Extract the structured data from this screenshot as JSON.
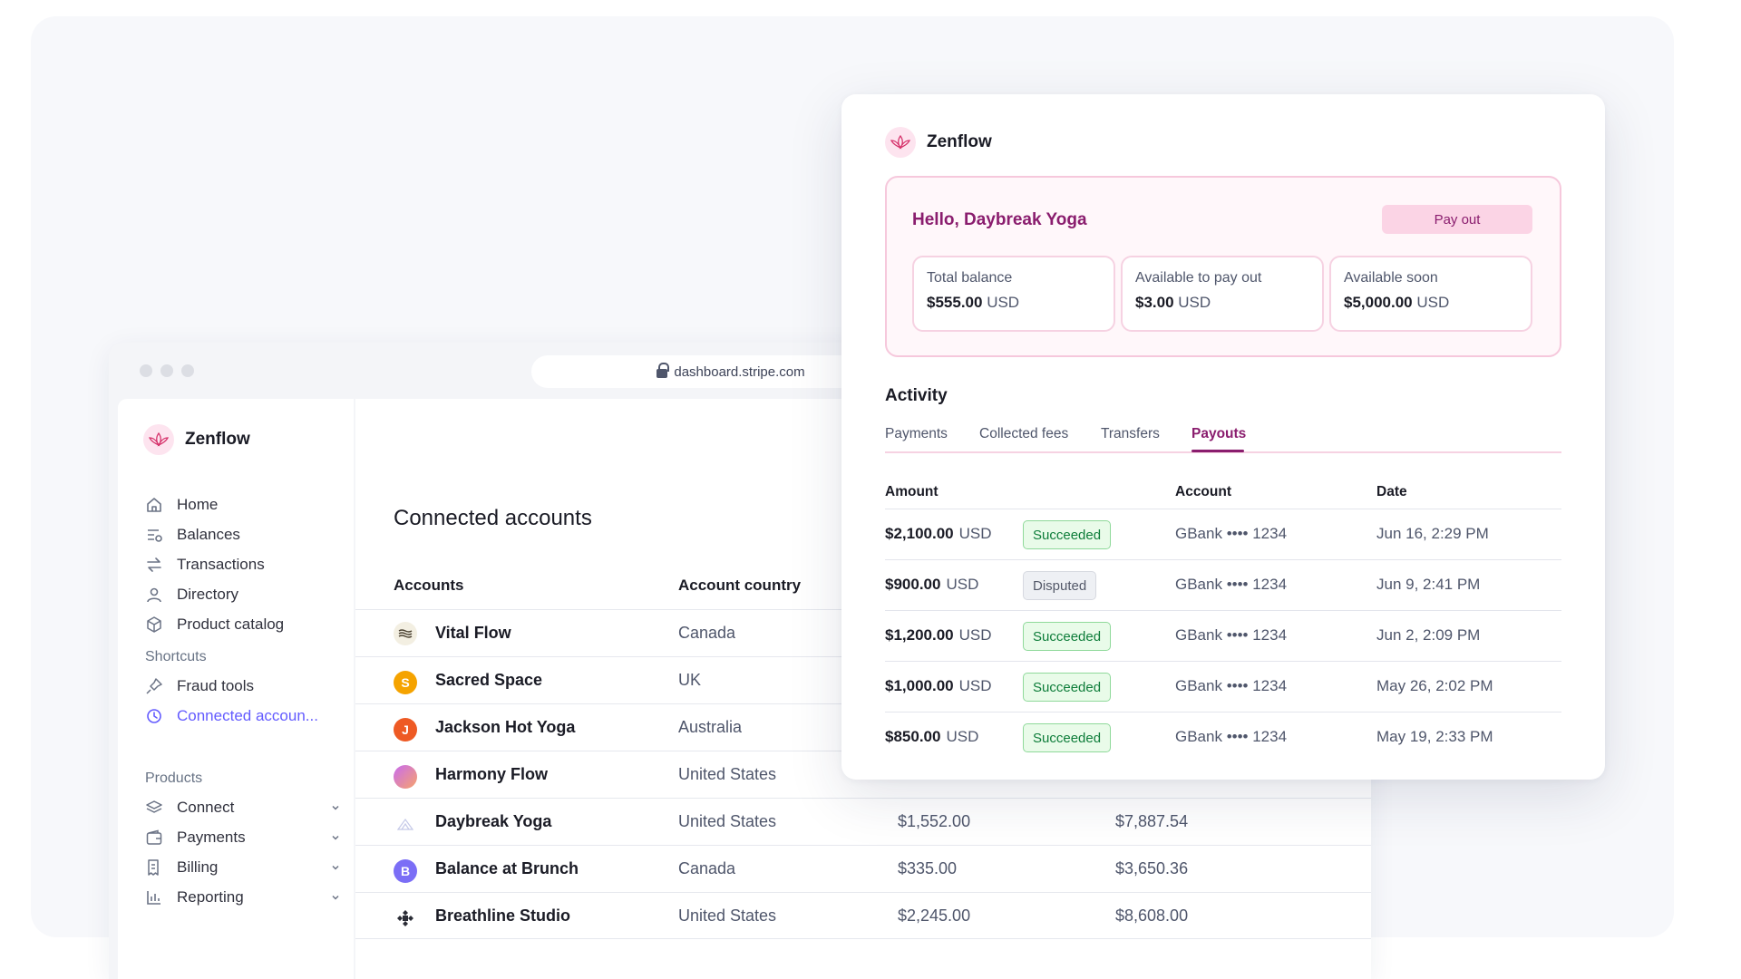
{
  "browser": {
    "url": "dashboard.stripe.com"
  },
  "sidebar": {
    "brand": "Zenflow",
    "items": [
      {
        "label": "Home",
        "icon": "home-icon"
      },
      {
        "label": "Balances",
        "icon": "balances-icon"
      },
      {
        "label": "Transactions",
        "icon": "transactions-icon"
      },
      {
        "label": "Directory",
        "icon": "user-icon"
      },
      {
        "label": "Product catalog",
        "icon": "cube-icon"
      }
    ],
    "shortcuts_heading": "Shortcuts",
    "shortcuts": [
      {
        "label": "Fraud tools",
        "icon": "pin-icon"
      },
      {
        "label": "Connected accoun...",
        "icon": "clock-icon",
        "active": true
      }
    ],
    "products_heading": "Products",
    "products": [
      {
        "label": "Connect",
        "icon": "layers-icon"
      },
      {
        "label": "Payments",
        "icon": "wallet-icon"
      },
      {
        "label": "Billing",
        "icon": "billing-icon"
      },
      {
        "label": "Reporting",
        "icon": "chart-icon"
      }
    ]
  },
  "main": {
    "title": "Connected accounts",
    "columns": [
      "Accounts",
      "Account country"
    ],
    "rows": [
      {
        "name": "Vital Flow",
        "country": "Canada",
        "v1": "",
        "v2": "",
        "avatar": "",
        "avatar_color": "#f3efe2"
      },
      {
        "name": "Sacred Space",
        "country": "UK",
        "v1": "",
        "v2": "",
        "avatar": "S",
        "avatar_color": "#f5a300"
      },
      {
        "name": "Jackson Hot Yoga",
        "country": "Australia",
        "v1": "",
        "v2": "",
        "avatar": "J",
        "avatar_color": "#ee5a24"
      },
      {
        "name": "Harmony Flow",
        "country": "United States",
        "v1": "",
        "v2": "",
        "avatar": "",
        "avatar_color": "#e48ab8"
      },
      {
        "name": "Daybreak Yoga",
        "country": "United States",
        "v1": "$1,552.00",
        "v2": "$7,887.54",
        "avatar": "",
        "avatar_color": "#ffffff"
      },
      {
        "name": "Balance at Brunch",
        "country": "Canada",
        "v1": "$335.00",
        "v2": "$3,650.36",
        "avatar": "B",
        "avatar_color": "#7b6ef6"
      },
      {
        "name": "Breathline Studio",
        "country": "United States",
        "v1": "$2,245.00",
        "v2": "$8,608.00",
        "avatar": "",
        "avatar_color": "#ffffff"
      }
    ]
  },
  "card": {
    "brand": "Zenflow",
    "greeting": "Hello, Daybreak Yoga",
    "payout_button": "Pay out",
    "balances": [
      {
        "label": "Total balance",
        "amount": "$555.00",
        "currency": "USD"
      },
      {
        "label": "Available to pay out",
        "amount": "$3.00",
        "currency": "USD"
      },
      {
        "label": "Available soon",
        "amount": "$5,000.00",
        "currency": "USD"
      }
    ],
    "activity_title": "Activity",
    "tabs": [
      "Payments",
      "Collected fees",
      "Transfers",
      "Payouts"
    ],
    "active_tab": "Payouts",
    "columns": [
      "Amount",
      "Account",
      "Date"
    ],
    "rows": [
      {
        "amount": "$2,100.00",
        "currency": "USD",
        "status": "Succeeded",
        "account": "GBank •••• 1234",
        "date": "Jun 16, 2:29 PM"
      },
      {
        "amount": "$900.00",
        "currency": "USD",
        "status": "Disputed",
        "account": "GBank •••• 1234",
        "date": "Jun 9, 2:41 PM"
      },
      {
        "amount": "$1,200.00",
        "currency": "USD",
        "status": "Succeeded",
        "account": "GBank •••• 1234",
        "date": "Jun 2, 2:09 PM"
      },
      {
        "amount": "$1,000.00",
        "currency": "USD",
        "status": "Succeeded",
        "account": "GBank •••• 1234",
        "date": "May 26, 2:02 PM"
      },
      {
        "amount": "$850.00",
        "currency": "USD",
        "status": "Succeeded",
        "account": "GBank •••• 1234",
        "date": "May 19, 2:33 PM"
      }
    ]
  },
  "colors": {
    "brand_magenta": "#8a1d6e",
    "accent_purple": "#635bff",
    "success_green": "#0e7d3a"
  }
}
